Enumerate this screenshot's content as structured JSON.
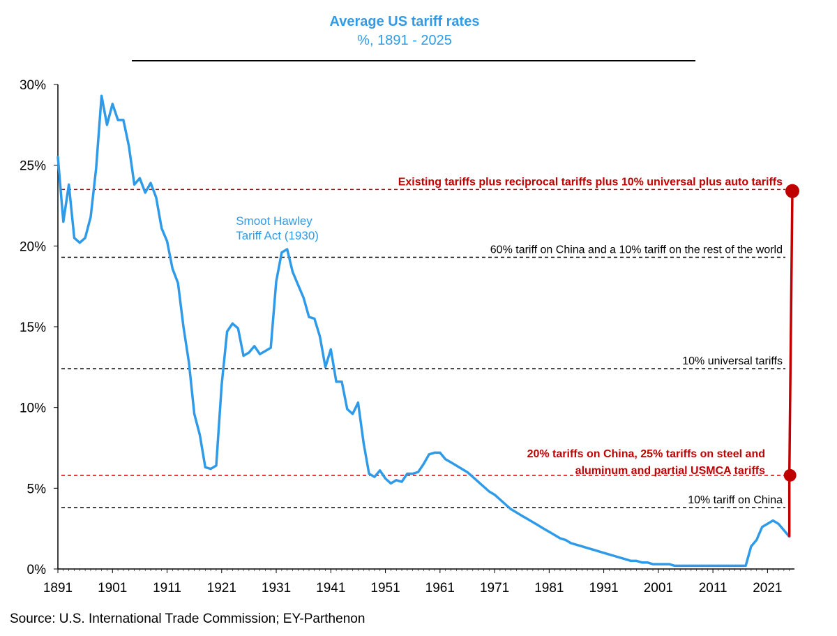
{
  "chart_data": {
    "type": "line",
    "title": "Average US tariff rates",
    "subtitle": "%, 1891 - 2025",
    "xlim": [
      1891,
      2026
    ],
    "ylim": [
      0,
      30
    ],
    "grid": false,
    "x_ticks": [
      1891,
      1901,
      1911,
      1921,
      1931,
      1941,
      1951,
      1961,
      1971,
      1981,
      1991,
      2001,
      2011,
      2021
    ],
    "y_ticks": [
      {
        "value": 0,
        "label": "0%"
      },
      {
        "value": 5,
        "label": "5%"
      },
      {
        "value": 10,
        "label": "10%"
      },
      {
        "value": 15,
        "label": "15%"
      },
      {
        "value": 20,
        "label": "20%"
      },
      {
        "value": 25,
        "label": "25%"
      },
      {
        "value": 30,
        "label": "30%"
      }
    ],
    "series": [
      {
        "color": "#2f9be8",
        "x": [
          1891,
          1892,
          1893,
          1894,
          1895,
          1896,
          1897,
          1898,
          1899,
          1900,
          1901,
          1902,
          1903,
          1904,
          1905,
          1906,
          1907,
          1908,
          1909,
          1910,
          1911,
          1912,
          1913,
          1914,
          1915,
          1916,
          1917,
          1918,
          1919,
          1920,
          1921,
          1922,
          1923,
          1924,
          1925,
          1926,
          1927,
          1928,
          1929,
          1930,
          1931,
          1932,
          1933,
          1934,
          1935,
          1936,
          1937,
          1938,
          1939,
          1940,
          1941,
          1942,
          1943,
          1944,
          1945,
          1946,
          1947,
          1948,
          1949,
          1950,
          1951,
          1952,
          1953,
          1954,
          1955,
          1956,
          1957,
          1958,
          1959,
          1960,
          1961,
          1962,
          1963,
          1964,
          1965,
          1966,
          1967,
          1968,
          1969,
          1970,
          1971,
          1972,
          1973,
          1974,
          1975,
          1976,
          1977,
          1978,
          1979,
          1980,
          1981,
          1982,
          1983,
          1984,
          1985,
          1986,
          1987,
          1988,
          1989,
          1990,
          1991,
          1992,
          1993,
          1994,
          1995,
          1996,
          1997,
          1998,
          1999,
          2000,
          2001,
          2002,
          2003,
          2004,
          2005,
          2006,
          2007,
          2008,
          2009,
          2010,
          2011,
          2012,
          2013,
          2014,
          2015,
          2016,
          2017,
          2018,
          2019,
          2020,
          2021,
          2022,
          2023,
          2024,
          2025
        ],
        "values": [
          25.5,
          21.5,
          23.8,
          20.5,
          20.2,
          20.5,
          21.8,
          24.8,
          29.3,
          27.5,
          28.8,
          27.8,
          27.8,
          26.2,
          23.8,
          24.2,
          23.3,
          23.9,
          23.0,
          21.1,
          20.3,
          18.6,
          17.7,
          15.0,
          12.8,
          9.6,
          8.3,
          6.3,
          6.2,
          6.4,
          11.4,
          14.7,
          15.2,
          14.9,
          13.2,
          13.4,
          13.8,
          13.3,
          13.5,
          13.7,
          17.8,
          19.6,
          19.8,
          18.4,
          17.6,
          16.8,
          15.6,
          15.5,
          14.4,
          12.5,
          13.6,
          11.6,
          11.6,
          9.9,
          9.6,
          10.3,
          7.8,
          5.9,
          5.7,
          6.1,
          5.6,
          5.3,
          5.5,
          5.4,
          5.9,
          5.9,
          6.0,
          6.5,
          7.1,
          7.2,
          7.2,
          6.8,
          6.6,
          6.4,
          6.2,
          6.0,
          5.7,
          5.4,
          5.1,
          4.8,
          4.6,
          4.3,
          4.0,
          3.7,
          3.5,
          3.3,
          3.1,
          2.9,
          2.7,
          2.5,
          2.3,
          2.1,
          1.9,
          1.8,
          1.6,
          1.5,
          1.4,
          1.3,
          1.2,
          1.1,
          1.0,
          0.9,
          0.8,
          0.7,
          0.6,
          0.5,
          0.5,
          0.4,
          0.4,
          0.3,
          0.3,
          0.3,
          0.3,
          0.2,
          0.2,
          0.2,
          0.2,
          0.2,
          0.2,
          0.2,
          0.2,
          0.2,
          0.2,
          0.2,
          0.2,
          0.2,
          0.2,
          1.4,
          1.8,
          2.6,
          2.8,
          3.0,
          2.8,
          2.4,
          2.0
        ]
      }
    ],
    "reference_lines": [
      {
        "value": 23.5,
        "color": "#c00000",
        "label": "Existing tariffs plus reciprocal tariffs plus 10% universal plus auto tariffs",
        "bold": true
      },
      {
        "value": 19.3,
        "color": "#000000",
        "label": "60% tariff on China and a 10% tariff on the rest of the world",
        "bold": false
      },
      {
        "value": 12.4,
        "color": "#000000",
        "label": "10% universal tariffs",
        "bold": false
      },
      {
        "value": 5.8,
        "color": "#c00000",
        "label": "20% tariffs on China, 25% tariffs on steel and",
        "label2": "aluminum and partial USMCA tariffs",
        "bold": true
      },
      {
        "value": 3.8,
        "color": "#000000",
        "label": "10% tariff on China",
        "bold": false
      }
    ],
    "annotations": [
      {
        "text1": "Smoot Hawley",
        "text2": "Tariff Act (1930)",
        "x": 1930,
        "y": 20.5,
        "color": "#2f9be8"
      }
    ],
    "projection": {
      "x": 2025,
      "from": 2.0,
      "mid": 5.8,
      "to": 23.4,
      "color": "#c00000"
    }
  },
  "source": "Source: U.S. International Trade Commission; EY-Parthenon"
}
